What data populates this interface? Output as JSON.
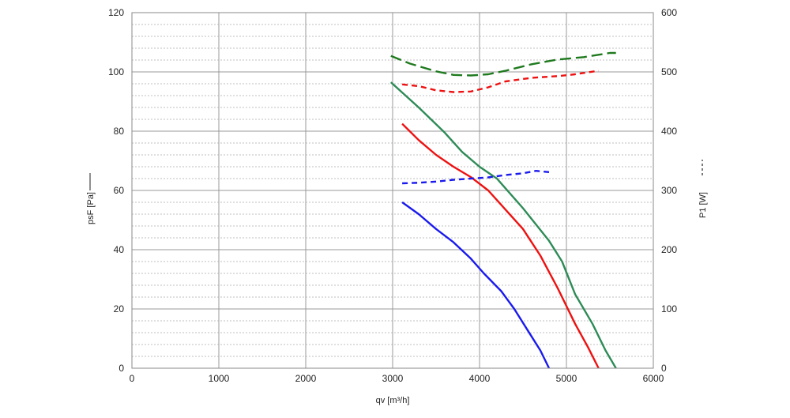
{
  "chart_data": {
    "type": "line",
    "xlabel": "qv [m³/h]",
    "ylabel_left": "psF [Pa]",
    "ylabel_right": "P1 [W]",
    "xlim": [
      0,
      6000
    ],
    "ylim_left": [
      0,
      120
    ],
    "ylim_right": [
      0,
      600
    ],
    "x_ticks": [
      "0",
      "1000",
      "2000",
      "3000",
      "4000",
      "5000",
      "6000"
    ],
    "y_left_ticks": [
      "0",
      "20",
      "40",
      "60",
      "80",
      "100",
      "120"
    ],
    "y_right_ticks": [
      "0",
      "100",
      "200",
      "300",
      "400",
      "500",
      "600"
    ],
    "grid": true,
    "series": [
      {
        "color": "#2e8b57",
        "axis": "left",
        "style": "solid",
        "x": [
          2980,
          3300,
          3600,
          3800,
          4000,
          4200,
          4500,
          4800,
          4950,
          5100,
          5300,
          5450,
          5570
        ],
        "y": [
          96.5,
          88,
          79.5,
          73,
          68,
          64,
          54,
          43,
          36,
          25,
          15,
          6,
          0
        ]
      },
      {
        "color": "#ee1111",
        "axis": "left",
        "style": "solid",
        "x": [
          3110,
          3300,
          3500,
          3700,
          3900,
          4100,
          4300,
          4500,
          4700,
          4900,
          5100,
          5250,
          5370
        ],
        "y": [
          82.5,
          77,
          72,
          68,
          64.5,
          60,
          53.5,
          47,
          38,
          27,
          15,
          7,
          0
        ]
      },
      {
        "color": "#1a1aee",
        "axis": "left",
        "style": "solid",
        "x": [
          3110,
          3300,
          3500,
          3700,
          3900,
          4050,
          4250,
          4400,
          4550,
          4700,
          4800
        ],
        "y": [
          56,
          52,
          47,
          42.5,
          37,
          32,
          26,
          20,
          13,
          6,
          0
        ]
      },
      {
        "color": "#1f7a1f",
        "axis": "right",
        "style": "dashed",
        "x": [
          2980,
          3200,
          3500,
          3700,
          3900,
          4100,
          4300,
          4600,
          4900,
          5200,
          5500,
          5570
        ],
        "y": [
          527,
          514,
          501,
          495,
          494,
          496,
          502,
          513,
          521,
          525,
          532,
          532
        ]
      },
      {
        "color": "#ee1111",
        "axis": "right",
        "style": "dashed",
        "x": [
          3110,
          3300,
          3500,
          3700,
          3900,
          4100,
          4300,
          4600,
          4900,
          5100,
          5370
        ],
        "y": [
          479,
          476,
          469,
          466,
          467,
          474,
          484,
          490,
          493,
          496,
          502
        ]
      },
      {
        "color": "#1a1aee",
        "axis": "right",
        "style": "dashed",
        "x": [
          3110,
          3300,
          3500,
          3700,
          3900,
          4100,
          4300,
          4500,
          4650,
          4800
        ],
        "y": [
          312,
          313,
          315,
          318,
          320,
          322,
          326,
          329,
          333,
          331
        ]
      }
    ]
  }
}
